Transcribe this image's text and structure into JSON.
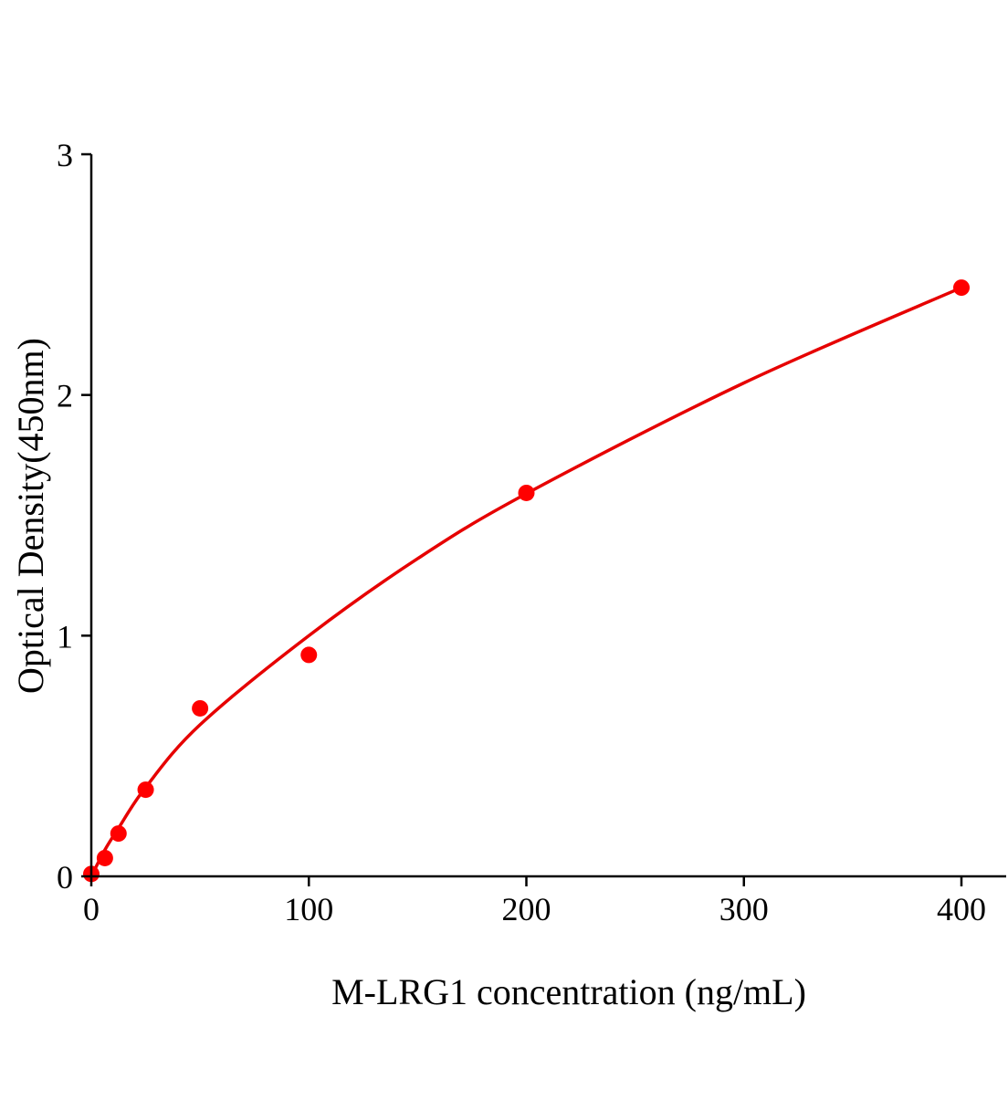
{
  "chart_data": {
    "type": "scatter",
    "xlabel": "M-LRG1 concentration (ng/mL)",
    "ylabel": "Optical Density(450nm)",
    "xlim": [
      0,
      420
    ],
    "ylim": [
      0,
      3
    ],
    "xticks": [
      0,
      100,
      200,
      300,
      400
    ],
    "yticks": [
      0,
      1,
      2,
      3
    ],
    "grid": false,
    "colors": {
      "points": "#ff0000",
      "curve": "#e60000",
      "axis": "#000000"
    },
    "points": {
      "x": [
        0,
        6.25,
        12.5,
        25,
        50,
        100,
        200,
        400
      ],
      "y": [
        0.01,
        0.076,
        0.178,
        0.36,
        0.698,
        0.92,
        1.593,
        2.446
      ]
    },
    "fit_curve": {
      "x": [
        0,
        6.25,
        12.5,
        25,
        50,
        100,
        150,
        200,
        300,
        400
      ],
      "y": [
        0,
        0.11,
        0.2,
        0.37,
        0.63,
        1.0,
        1.32,
        1.59,
        2.05,
        2.446
      ]
    }
  }
}
